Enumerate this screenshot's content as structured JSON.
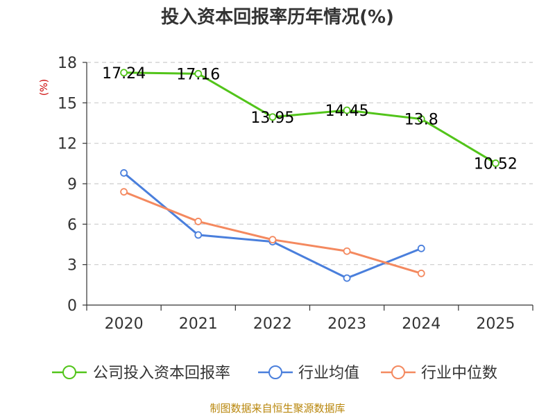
{
  "chart_data": {
    "type": "line",
    "title": "投入资本回报率历年情况(%)",
    "xlabel": "",
    "ylabel": "(%)",
    "ylim": [
      0,
      18
    ],
    "yticks": [
      0,
      3,
      6,
      9,
      12,
      15,
      18
    ],
    "categories": [
      "2020",
      "2021",
      "2022",
      "2023",
      "2024",
      "2025"
    ],
    "grid": true,
    "legend_position": "bottom",
    "series": [
      {
        "name": "公司投入资本回报率",
        "color": "#52c41a",
        "values": [
          17.24,
          17.16,
          13.95,
          14.45,
          13.8,
          10.52
        ],
        "show_labels": true
      },
      {
        "name": "行业均值",
        "color": "#4a7fdc",
        "values": [
          9.8,
          5.2,
          4.7,
          2.0,
          4.2,
          null
        ],
        "show_labels": false
      },
      {
        "name": "行业中位数",
        "color": "#f4895f",
        "values": [
          8.4,
          6.2,
          4.85,
          4.0,
          2.35,
          null
        ],
        "show_labels": false
      }
    ],
    "source": "制图数据来自恒生聚源数据库"
  }
}
